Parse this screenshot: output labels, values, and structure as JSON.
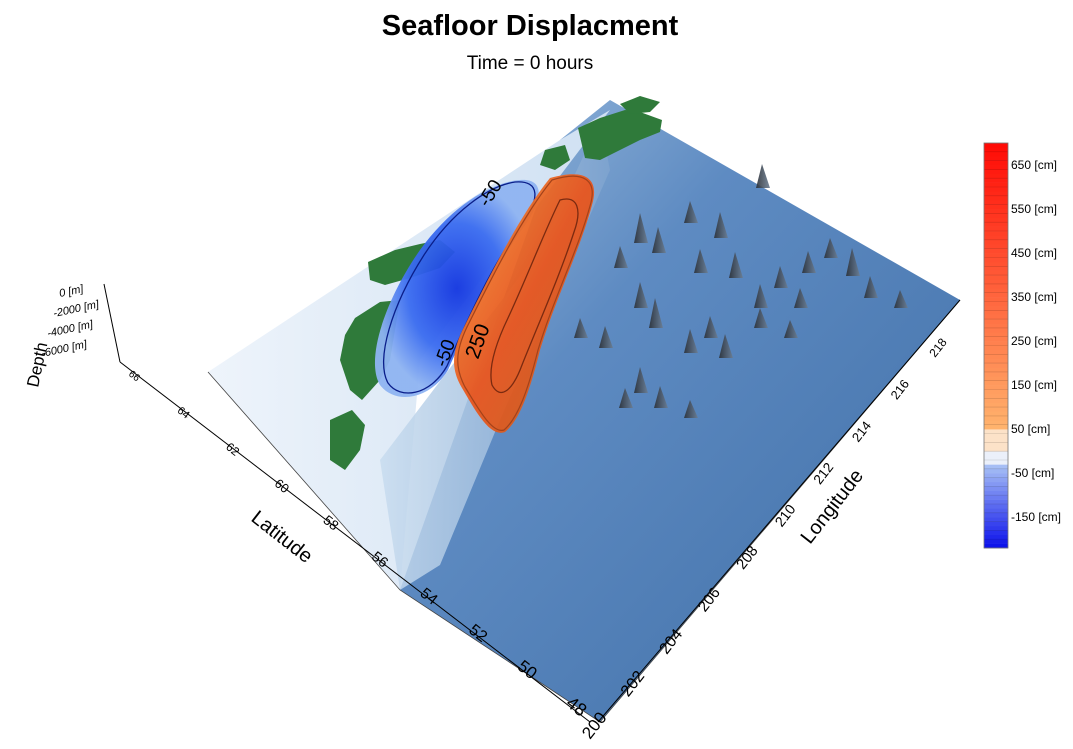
{
  "chart_data": {
    "type": "heatmap",
    "title": "Seafloor Displacment",
    "subtitle": "Time = 0 hours",
    "xlabel": "Longitude",
    "ylabel": "Latitude",
    "zlabel": "Depth",
    "x_ticks": [
      "200",
      "202",
      "204",
      "206",
      "208",
      "210",
      "212",
      "214",
      "216",
      "218"
    ],
    "y_ticks": [
      "48",
      "50",
      "52",
      "54",
      "56",
      "58",
      "60",
      "62",
      "64",
      "66"
    ],
    "z_ticks": [
      "0 [m]",
      "-2000 [m]",
      "-4000 [m]",
      "-6000 [m]"
    ],
    "xlim": [
      200,
      219
    ],
    "ylim": [
      48,
      66
    ],
    "zlim": [
      -6000,
      0
    ],
    "colorbar": {
      "min": -220,
      "max": 700,
      "labels": [
        {
          "value": 650,
          "text": "650 [cm]"
        },
        {
          "value": 550,
          "text": "550 [cm]"
        },
        {
          "value": 450,
          "text": "450 [cm]"
        },
        {
          "value": 350,
          "text": "350 [cm]"
        },
        {
          "value": 250,
          "text": "250 [cm]"
        },
        {
          "value": 150,
          "text": "150 [cm]"
        },
        {
          "value": 50,
          "text": "50 [cm]"
        },
        {
          "value": -50,
          "text": "-50 [cm]"
        },
        {
          "value": -150,
          "text": "-150 [cm]"
        }
      ]
    },
    "contour_labels": [
      {
        "value": -50,
        "text": "-50"
      },
      {
        "value": -50,
        "text": "-50"
      },
      {
        "value": 250,
        "text": "250"
      }
    ],
    "displacement_regions": [
      {
        "name": "subsidence",
        "peak_cm": -200,
        "lon_range": [
          201,
          207
        ],
        "lat_range": [
          58,
          64
        ]
      },
      {
        "name": "uplift",
        "peak_cm": 400,
        "lon_range": [
          202,
          209
        ],
        "lat_range": [
          56,
          62
        ]
      }
    ],
    "colors": {
      "ocean": "#4a78b0",
      "ocean_light": "#6f97c8",
      "land": "#2f7a3a",
      "shelf": "#dbe8f5",
      "uplift": "#e8551e",
      "subsidence": "#1a3ee6"
    },
    "grid": false
  }
}
